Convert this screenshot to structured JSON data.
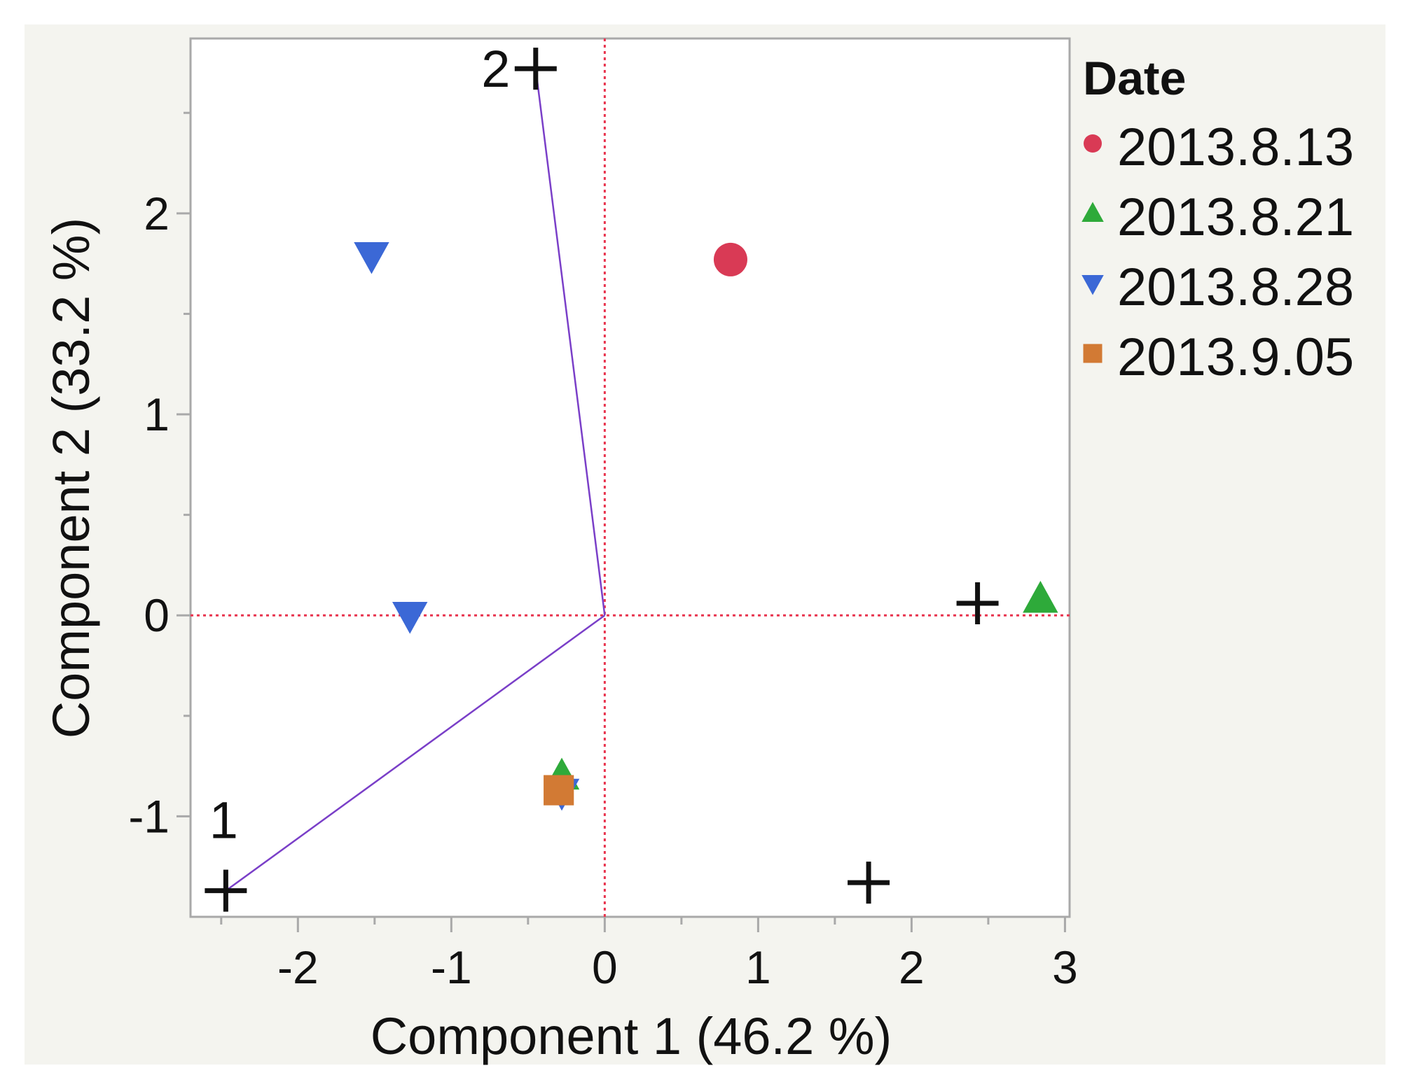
{
  "chart_data": {
    "type": "scatter",
    "xlabel": "Component 1  (46.2 %)",
    "ylabel": "Component 2  (33.2 %)",
    "xlim": [
      -2.7,
      3.03
    ],
    "ylim": [
      -1.5,
      2.87
    ],
    "x_ticks": [
      -2,
      -1,
      0,
      1,
      2,
      3
    ],
    "y_ticks": [
      -1,
      0,
      1,
      2
    ],
    "x_tick_labels": [
      "-2",
      "-1",
      "0",
      "1",
      "2",
      "3"
    ],
    "y_tick_labels": [
      "-1",
      "0",
      "1",
      "2"
    ],
    "grid": false,
    "reference_lines": {
      "x": 0,
      "y": 0,
      "style": "dotted",
      "color": "#e8344e"
    },
    "legend": {
      "title": "Date",
      "position": "right"
    },
    "series": [
      {
        "name": "2013.8.13",
        "marker": "circle",
        "color": "#d93a55",
        "points": [
          [
            0.82,
            1.77
          ]
        ]
      },
      {
        "name": "2013.8.21",
        "marker": "triangle-up",
        "color": "#2eaa3a",
        "points": [
          [
            2.84,
            0.08
          ],
          [
            -0.28,
            -0.8
          ]
        ]
      },
      {
        "name": "2013.8.28",
        "marker": "triangle-down",
        "color": "#3b68d6",
        "points": [
          [
            -1.52,
            1.79
          ],
          [
            -1.27,
            0.0
          ],
          [
            -0.28,
            -0.88
          ]
        ]
      },
      {
        "name": "2013.9.05",
        "marker": "square",
        "color": "#d27a34",
        "points": [
          [
            -0.3,
            -0.87
          ]
        ]
      }
    ],
    "loading_vectors": {
      "color": "#7a3fc8",
      "vectors": [
        {
          "label": "1",
          "x": -2.47,
          "y": -1.37
        },
        {
          "label": "2",
          "x": -0.45,
          "y": 2.72
        }
      ]
    },
    "plus_markers": [
      [
        -2.47,
        -1.37
      ],
      [
        -0.45,
        2.72
      ],
      [
        2.43,
        0.06
      ],
      [
        1.72,
        -1.33
      ]
    ]
  }
}
